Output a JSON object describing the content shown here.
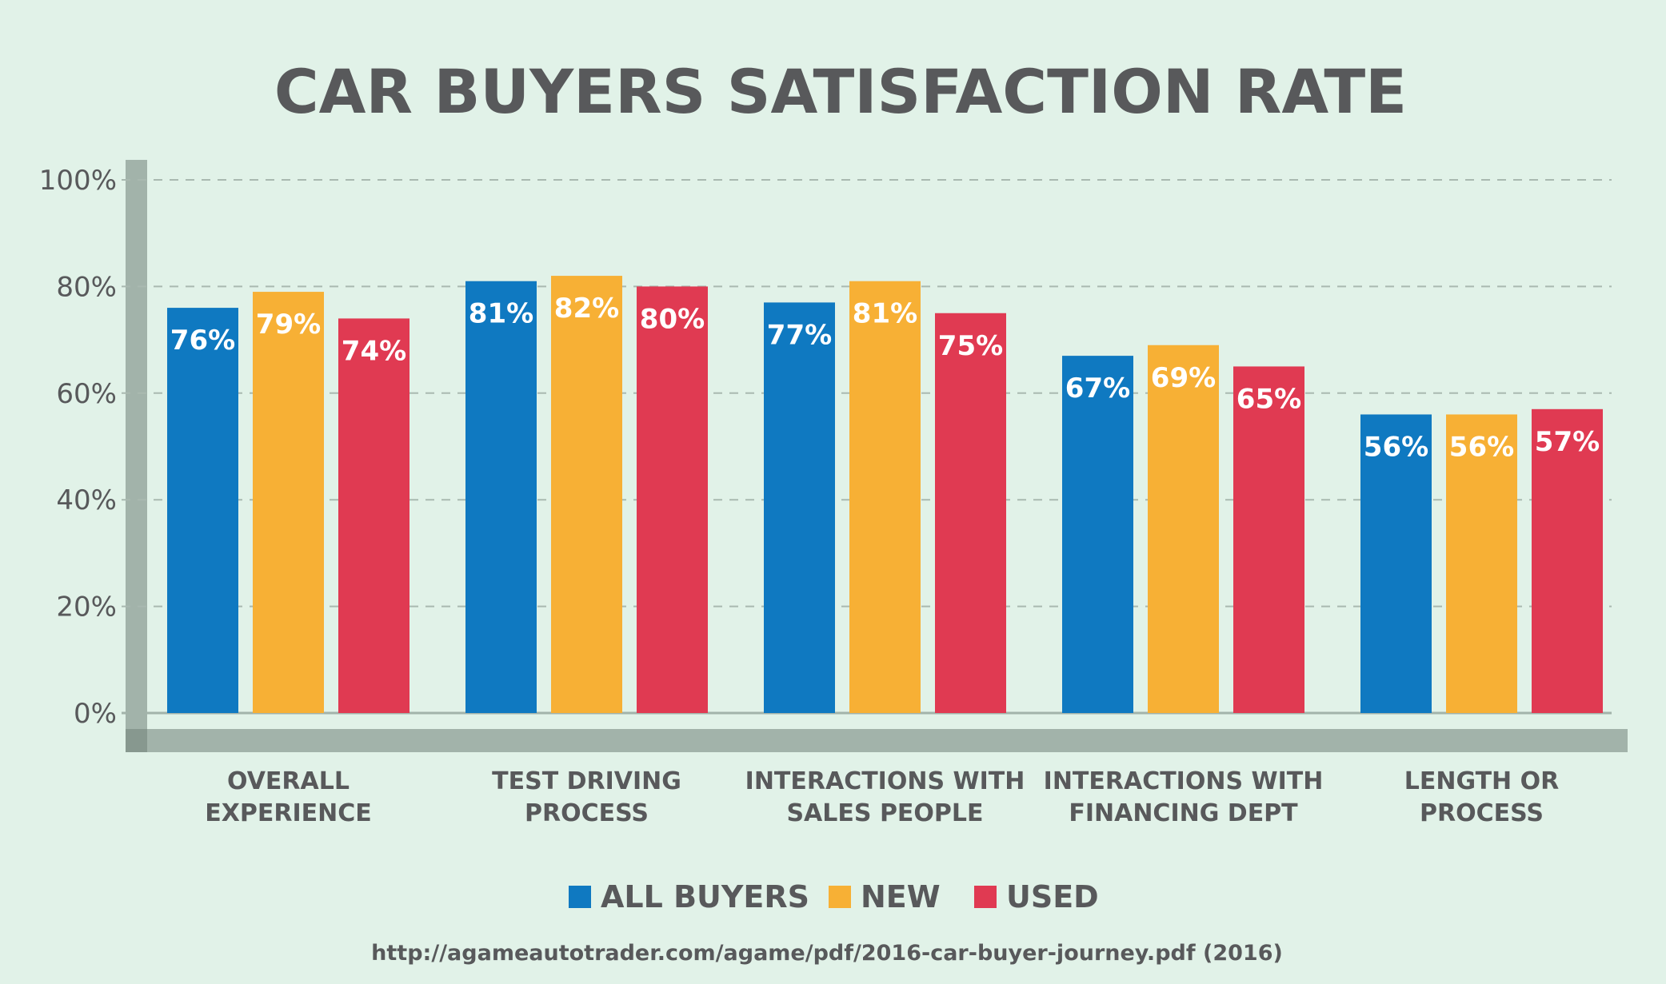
{
  "chart_data": {
    "type": "bar",
    "title": "CAR BUYERS SATISFACTION RATE",
    "categories": [
      [
        "OVERALL",
        "EXPERIENCE"
      ],
      [
        "TEST DRIVING",
        "PROCESS"
      ],
      [
        "INTERACTIONS WITH",
        "SALES PEOPLE"
      ],
      [
        "INTERACTIONS WITH",
        "FINANCING DEPT"
      ],
      [
        "LENGTH OR",
        "PROCESS"
      ]
    ],
    "series": [
      {
        "name": "ALL BUYERS",
        "color": "#0f79c1",
        "values": [
          76,
          81,
          77,
          67,
          56
        ],
        "labels": [
          "76%",
          "81%",
          "77%",
          "67%",
          "56%"
        ]
      },
      {
        "name": "NEW",
        "color": "#f7b035",
        "values": [
          79,
          82,
          81,
          69,
          56
        ],
        "labels": [
          "79%",
          "82%",
          "81%",
          "69%",
          "56%"
        ]
      },
      {
        "name": "USED",
        "color": "#e03a52",
        "values": [
          74,
          80,
          75,
          65,
          57
        ],
        "labels": [
          "74%",
          "80%",
          "75%",
          "65%",
          "57%"
        ]
      }
    ],
    "yticks": [
      0,
      20,
      40,
      60,
      80,
      100
    ],
    "ytick_labels": [
      "0%",
      "20%",
      "40%",
      "60%",
      "80%",
      "100%"
    ],
    "ylim": [
      0,
      100
    ],
    "grid": true,
    "legend_position": "bottom",
    "source": "http://agameautotrader.com/agame/pdf/2016-car-buyer-journey.pdf (2016)"
  }
}
